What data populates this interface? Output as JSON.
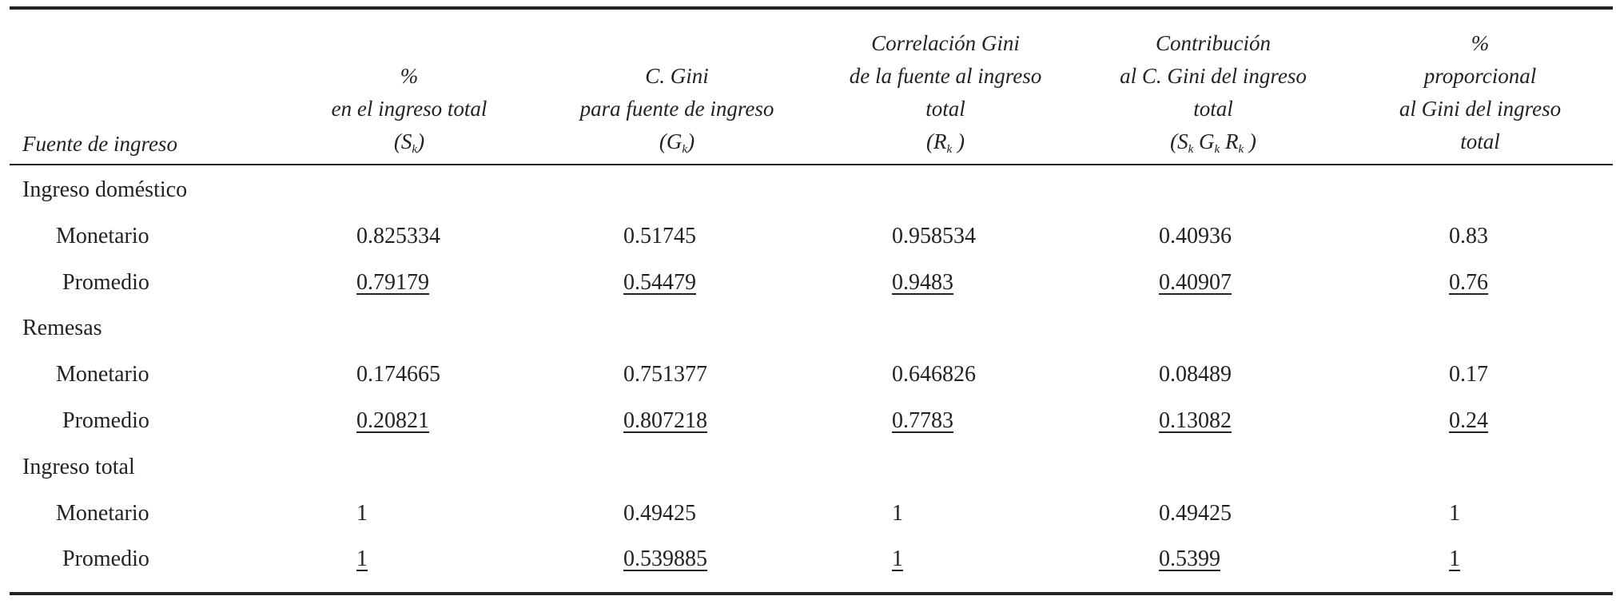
{
  "table": {
    "stub_header": "Fuente de ingreso",
    "columns": [
      {
        "lines": [
          "%",
          "en el ingreso total"
        ],
        "symbol": [
          {
            "text": "(S"
          },
          {
            "sub": "k"
          },
          {
            "text": ")"
          }
        ]
      },
      {
        "lines": [
          "C. Gini",
          "para fuente de ingreso"
        ],
        "symbol": [
          {
            "text": "(G"
          },
          {
            "sub": "k"
          },
          {
            "text": ")"
          }
        ]
      },
      {
        "lines": [
          "Correlación Gini",
          "de la fuente al ingreso",
          "total"
        ],
        "symbol": [
          {
            "text": "(R"
          },
          {
            "sub": "k"
          },
          {
            "text": " )"
          }
        ]
      },
      {
        "lines": [
          "Contribución",
          "al C. Gini del ingreso",
          "total"
        ],
        "symbol": [
          {
            "text": "(S"
          },
          {
            "sub": "k"
          },
          {
            "text": " G"
          },
          {
            "sub": "k"
          },
          {
            "text": " R"
          },
          {
            "sub": "k"
          },
          {
            "text": " )"
          }
        ]
      },
      {
        "lines": [
          "%",
          "proporcional",
          "al Gini del ingreso",
          "total"
        ],
        "symbol": []
      }
    ],
    "groups": [
      {
        "label": "Ingreso doméstico",
        "rows": [
          {
            "label": "Monetario",
            "values": [
              0.825334,
              0.51745,
              0.958534,
              0.40936,
              0.83
            ],
            "underline": false
          },
          {
            "label": "Promedio",
            "values": [
              0.79179,
              0.54479,
              0.9483,
              0.40907,
              0.76
            ],
            "underline": true
          }
        ]
      },
      {
        "label": "Remesas",
        "rows": [
          {
            "label": "Monetario",
            "values": [
              0.174665,
              0.751377,
              0.646826,
              0.08489,
              0.17
            ],
            "underline": false
          },
          {
            "label": "Promedio",
            "values": [
              0.20821,
              0.807218,
              0.7783,
              0.13082,
              0.24
            ],
            "underline": true
          }
        ]
      },
      {
        "label": "Ingreso total",
        "rows": [
          {
            "label": "Monetario",
            "values": [
              1,
              0.49425,
              1,
              0.49425,
              1
            ],
            "underline": false
          },
          {
            "label": "Promedio",
            "values": [
              1,
              0.539885,
              1,
              0.5399,
              1
            ],
            "underline": true
          }
        ]
      }
    ]
  }
}
